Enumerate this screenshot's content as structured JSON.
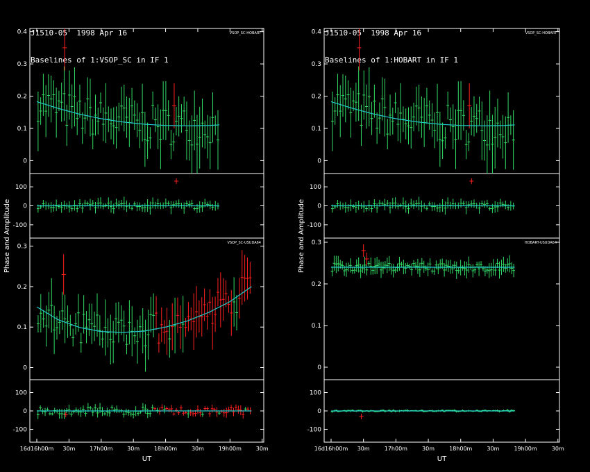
{
  "colors": {
    "background": "#000000",
    "frame": "#ffffff",
    "good": "#33dd66",
    "flagged": "#ff2020",
    "model": "#22cccc",
    "text": "#ffffff"
  },
  "left": {
    "title_line1": "J1510-05  1998 Apr 16",
    "title_line2": "Baselines of 1:VSOP_SC in IF 1",
    "ylabel": "Phase and Amplitude",
    "xlabel": "UT",
    "x_ticks": [
      "16d16h00m",
      "30m",
      "17h00m",
      "30m",
      "18h00m",
      "30m",
      "19h00m",
      "30m"
    ]
  },
  "right": {
    "title_line1": "J1510-05  1998 Apr 16",
    "title_line2": "Baselines of 1:HOBART in IF 1",
    "ylabel": "Phase and Amplitude",
    "xlabel": "UT",
    "x_ticks": [
      "16d16h00m",
      "30m",
      "17h00m",
      "30m",
      "18h00m",
      "30m",
      "19h00m",
      "30m"
    ]
  },
  "chart_data": [
    {
      "type": "scatter",
      "panel": "left-top",
      "baseline_label": "VSOP_SC-HOBART",
      "title": "J1510-05 1998 Apr 16 — Baselines of 1:VSOP_SC in IF 1",
      "xlabel": "UT",
      "x_range_minutes": [
        0,
        205
      ],
      "amplitude": {
        "ylim": [
          -0.04,
          0.41
        ],
        "yticks": [
          0,
          0.1,
          0.2,
          0.3,
          0.4
        ],
        "model_x_minutes": [
          0,
          20,
          40,
          60,
          80,
          100,
          120,
          140,
          160,
          170
        ],
        "model_y": [
          0.183,
          0.162,
          0.144,
          0.13,
          0.12,
          0.113,
          0.109,
          0.108,
          0.109,
          0.111
        ],
        "points_seed": 7,
        "n_points": 70,
        "spread": 0.06,
        "err": 0.07,
        "flagged_points": [
          {
            "x": 26,
            "y": 0.35
          },
          {
            "x": 128,
            "y": 0.17
          }
        ]
      },
      "phase": {
        "ylim": [
          -170,
          170
        ],
        "yticks": [
          -100,
          0,
          100
        ],
        "model_y": 0,
        "points_seed": 11,
        "n_points": 70,
        "spread": 15,
        "err": 25,
        "flagged_points": [
          {
            "x": 130,
            "y": 130
          }
        ]
      },
      "x_data_max_minutes": 170
    },
    {
      "type": "scatter",
      "panel": "left-bottom",
      "baseline_label": "VSOP_SC-USUDA64",
      "x_range_minutes": [
        0,
        205
      ],
      "amplitude": {
        "ylim": [
          -0.03,
          0.32
        ],
        "yticks": [
          0,
          0.1,
          0.2,
          0.3
        ],
        "model_x_minutes": [
          0,
          20,
          40,
          60,
          80,
          100,
          120,
          140,
          160,
          180,
          200
        ],
        "model_y": [
          0.15,
          0.118,
          0.099,
          0.089,
          0.087,
          0.09,
          0.1,
          0.115,
          0.136,
          0.163,
          0.2
        ],
        "points_seed": 23,
        "n_points": 80,
        "spread": 0.04,
        "err": 0.05,
        "flagged_range_minutes": [
          110,
          200
        ],
        "flagged_points": [
          {
            "x": 25,
            "y": 0.23
          }
        ]
      },
      "phase": {
        "ylim": [
          -170,
          170
        ],
        "yticks": [
          -100,
          0,
          100
        ],
        "model_y": 0,
        "points_seed": 29,
        "n_points": 90,
        "spread": 20,
        "err": 20,
        "flagged_range_minutes": [
          110,
          200
        ],
        "flagged_points": [
          {
            "x": 27,
            "y": -20
          }
        ]
      },
      "x_data_max_minutes": 200
    },
    {
      "type": "scatter",
      "panel": "right-top",
      "baseline_label": "VSOP_SC-HOBART",
      "title": "J1510-05 1998 Apr 16 — Baselines of 1:HOBART in IF 1",
      "xlabel": "UT",
      "x_range_minutes": [
        0,
        205
      ],
      "amplitude": {
        "ylim": [
          -0.04,
          0.41
        ],
        "yticks": [
          0,
          0.1,
          0.2,
          0.3,
          0.4
        ],
        "model_x_minutes": [
          0,
          20,
          40,
          60,
          80,
          100,
          120,
          140,
          160,
          170
        ],
        "model_y": [
          0.183,
          0.162,
          0.144,
          0.13,
          0.12,
          0.113,
          0.109,
          0.108,
          0.109,
          0.111
        ],
        "points_seed": 7,
        "n_points": 70,
        "spread": 0.06,
        "err": 0.07,
        "flagged_points": [
          {
            "x": 26,
            "y": 0.35
          },
          {
            "x": 128,
            "y": 0.17
          }
        ]
      },
      "phase": {
        "ylim": [
          -170,
          170
        ],
        "yticks": [
          -100,
          0,
          100
        ],
        "model_y": 0,
        "points_seed": 11,
        "n_points": 70,
        "spread": 15,
        "err": 25,
        "flagged_points": [
          {
            "x": 130,
            "y": 130
          }
        ]
      },
      "x_data_max_minutes": 170
    },
    {
      "type": "scatter",
      "panel": "right-bottom",
      "baseline_label": "HOBART-USUDA64",
      "x_range_minutes": [
        0,
        205
      ],
      "amplitude": {
        "ylim": [
          -0.03,
          0.31
        ],
        "yticks": [
          0,
          0.1,
          0.2,
          0.3
        ],
        "model_x_minutes": [
          0,
          170
        ],
        "model_y": [
          0.24,
          0.24
        ],
        "points_seed": 41,
        "n_points": 90,
        "spread": 0.01,
        "err": 0.015,
        "flagged_points": [
          {
            "x": 30,
            "y": 0.28
          },
          {
            "x": 33,
            "y": 0.26
          }
        ]
      },
      "phase": {
        "ylim": [
          -170,
          170
        ],
        "yticks": [
          -100,
          0,
          100
        ],
        "model_y": 0,
        "points_seed": 43,
        "n_points": 90,
        "spread": 4,
        "err": 5,
        "flagged_points": [
          {
            "x": 28,
            "y": -30
          }
        ]
      },
      "x_data_max_minutes": 170
    }
  ]
}
